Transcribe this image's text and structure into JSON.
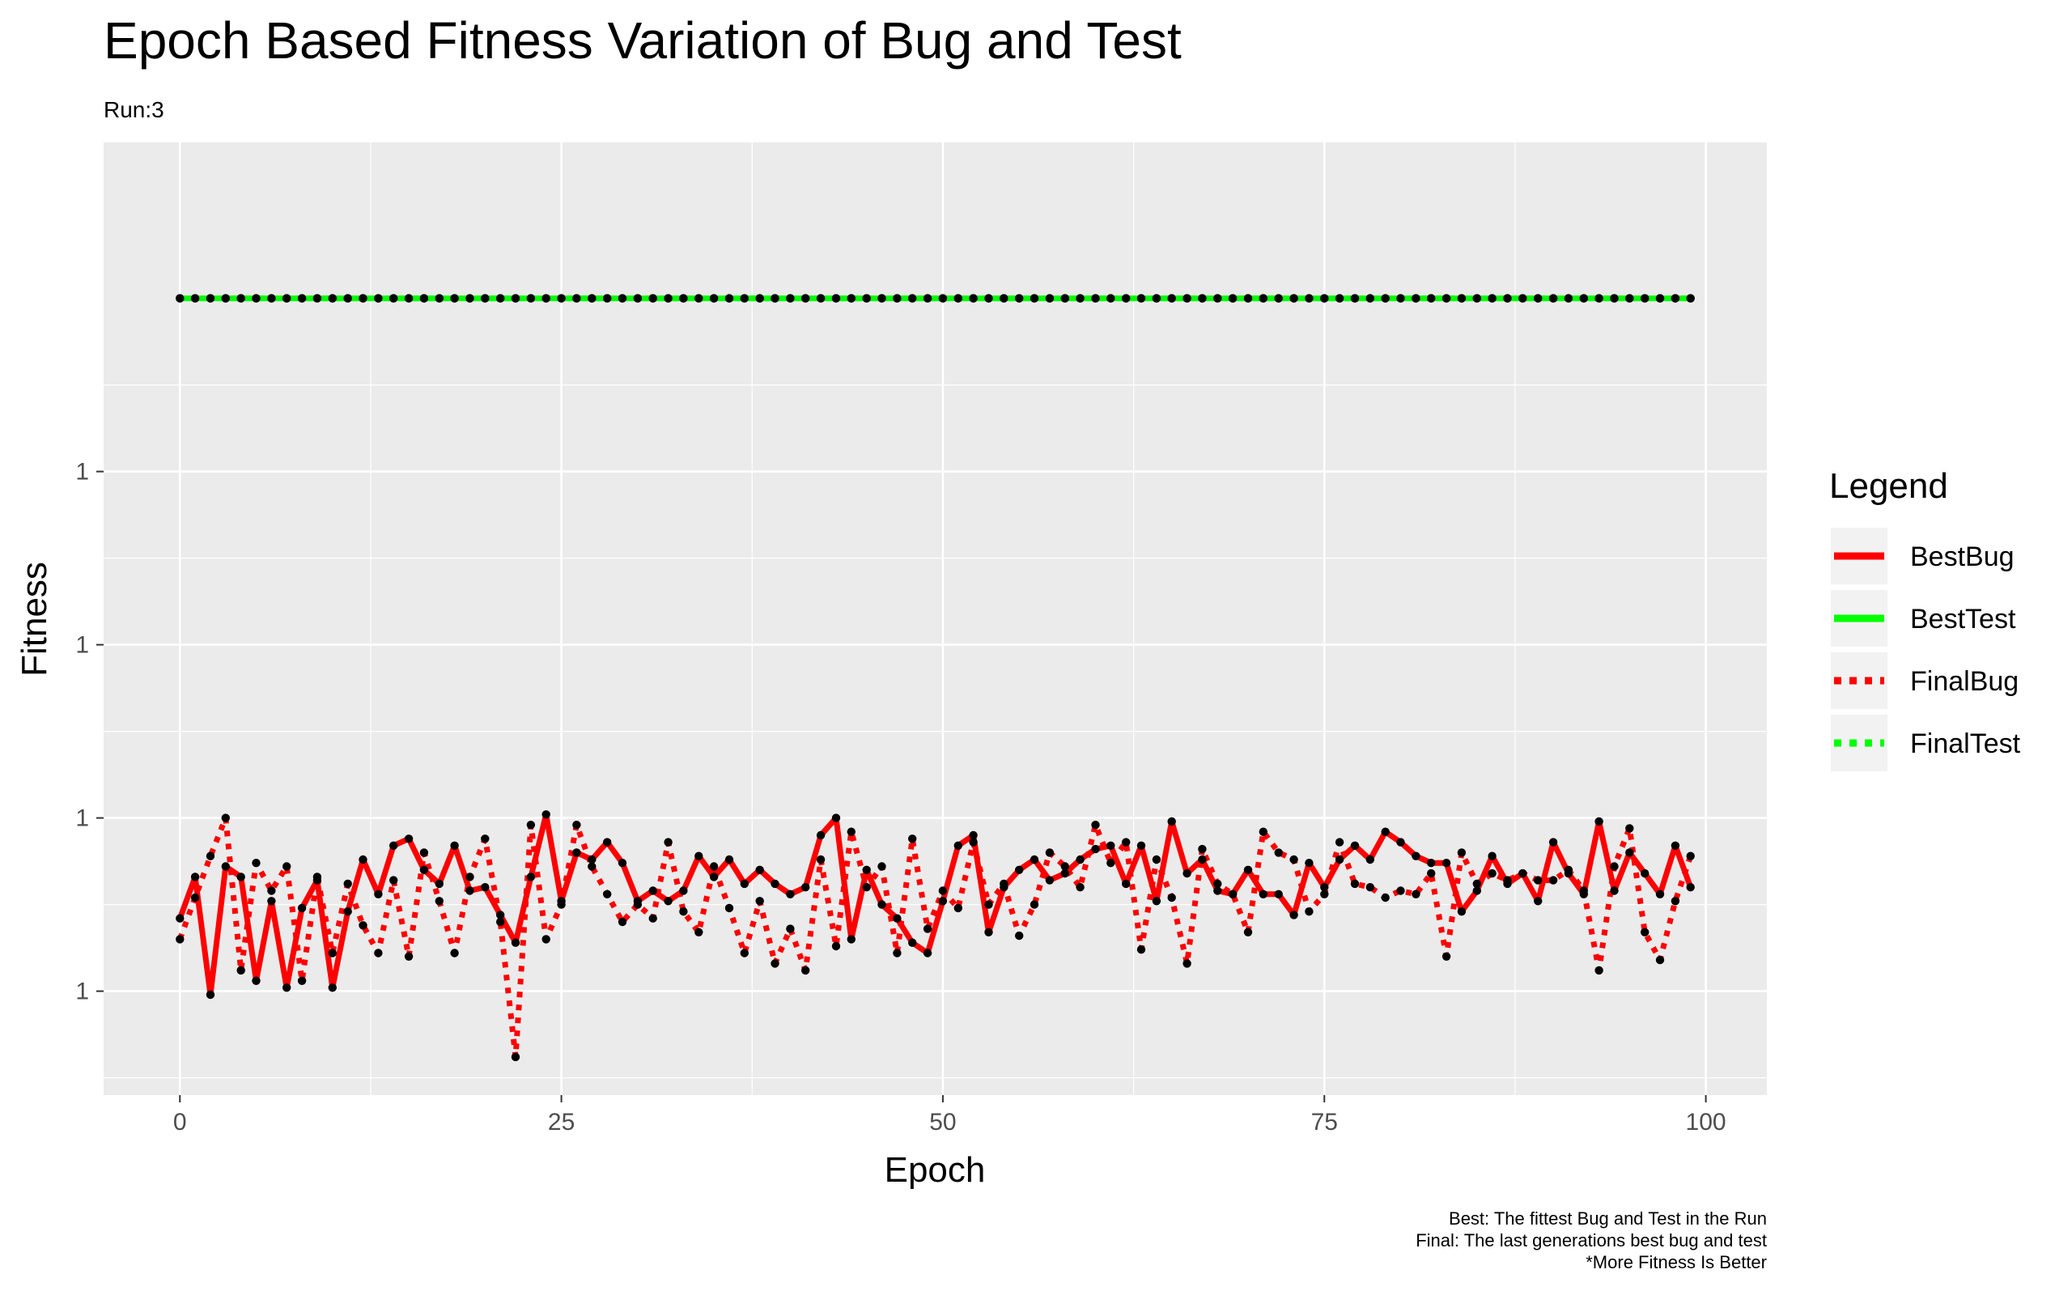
{
  "chart_data": {
    "type": "line",
    "title": "Epoch Based Fitness Variation of Bug and Test",
    "subtitle": "Run:3",
    "xlabel": "Epoch",
    "ylabel": "Fitness",
    "xlim": [
      -5,
      104
    ],
    "ylim": [
      0.977,
      1.0045
    ],
    "x_ticks": [
      0,
      25,
      50,
      75,
      100
    ],
    "y_ticks": [
      0.98,
      0.985,
      0.99,
      0.995
    ],
    "y_tick_labels": [
      "1",
      "1",
      "1",
      "1"
    ],
    "grid": true,
    "legend": {
      "title": "Legend",
      "position": "right",
      "entries": [
        {
          "name": "BestBug",
          "color": "#ff0000",
          "style": "solid"
        },
        {
          "name": "BestTest",
          "color": "#00ff00",
          "style": "solid"
        },
        {
          "name": "FinalBug",
          "color": "#ff0000",
          "style": "dotted"
        },
        {
          "name": "FinalTest",
          "color": "#00ff00",
          "style": "dotted"
        }
      ]
    },
    "caption": [
      "Best: The fittest Bug and Test in the Run",
      "Final: The last generations best bug and test",
      "*More Fitness Is Better"
    ],
    "x": [
      0,
      1,
      2,
      3,
      4,
      5,
      6,
      7,
      8,
      9,
      10,
      11,
      12,
      13,
      14,
      15,
      16,
      17,
      18,
      19,
      20,
      21,
      22,
      23,
      24,
      25,
      26,
      27,
      28,
      29,
      30,
      31,
      32,
      33,
      34,
      35,
      36,
      37,
      38,
      39,
      40,
      41,
      42,
      43,
      44,
      45,
      46,
      47,
      48,
      49,
      50,
      51,
      52,
      53,
      54,
      55,
      56,
      57,
      58,
      59,
      60,
      61,
      62,
      63,
      64,
      65,
      66,
      67,
      68,
      69,
      70,
      71,
      72,
      73,
      74,
      75,
      76,
      77,
      78,
      79,
      80,
      81,
      82,
      83,
      84,
      85,
      86,
      87,
      88,
      89,
      90,
      91,
      92,
      93,
      94,
      95,
      96,
      97,
      98,
      99
    ],
    "series": [
      {
        "name": "BestBug",
        "values": [
          0.9821,
          0.9833,
          0.9799,
          0.9836,
          0.9833,
          0.9803,
          0.9826,
          0.9801,
          0.9824,
          0.9832,
          0.9801,
          0.9823,
          0.9838,
          0.9828,
          0.9842,
          0.9844,
          0.9835,
          0.9831,
          0.9842,
          0.9829,
          0.983,
          0.9822,
          0.9814,
          0.9833,
          0.9851,
          0.9826,
          0.984,
          0.9838,
          0.9843,
          0.9837,
          0.9826,
          0.9829,
          0.9826,
          0.9829,
          0.9839,
          0.9833,
          0.9838,
          0.9831,
          0.9835,
          0.9831,
          0.9828,
          0.983,
          0.9845,
          0.985,
          0.9815,
          0.9835,
          0.9825,
          0.9821,
          0.9814,
          0.9811,
          0.9826,
          0.9842,
          0.9845,
          0.9817,
          0.983,
          0.9835,
          0.9838,
          0.9832,
          0.9834,
          0.9838,
          0.9841,
          0.9842,
          0.9831,
          0.9842,
          0.9826,
          0.9849,
          0.9834,
          0.9838,
          0.9829,
          0.9828,
          0.9835,
          0.9828,
          0.9828,
          0.9822,
          0.9837,
          0.983,
          0.9838,
          0.9842,
          0.9838,
          0.9846,
          0.9843,
          0.9839,
          0.9837,
          0.9837,
          0.9823,
          0.9829,
          0.9839,
          0.9831,
          0.9834,
          0.9826,
          0.9843,
          0.9834,
          0.9828,
          0.9849,
          0.9829,
          0.984,
          0.9834,
          0.9828,
          0.9842,
          0.983
        ]
      },
      {
        "name": "BestTest",
        "values": [
          1.0,
          1.0,
          1.0,
          1.0,
          1.0,
          1.0,
          1.0,
          1.0,
          1.0,
          1.0,
          1.0,
          1.0,
          1.0,
          1.0,
          1.0,
          1.0,
          1.0,
          1.0,
          1.0,
          1.0,
          1.0,
          1.0,
          1.0,
          1.0,
          1.0,
          1.0,
          1.0,
          1.0,
          1.0,
          1.0,
          1.0,
          1.0,
          1.0,
          1.0,
          1.0,
          1.0,
          1.0,
          1.0,
          1.0,
          1.0,
          1.0,
          1.0,
          1.0,
          1.0,
          1.0,
          1.0,
          1.0,
          1.0,
          1.0,
          1.0,
          1.0,
          1.0,
          1.0,
          1.0,
          1.0,
          1.0,
          1.0,
          1.0,
          1.0,
          1.0,
          1.0,
          1.0,
          1.0,
          1.0,
          1.0,
          1.0,
          1.0,
          1.0,
          1.0,
          1.0,
          1.0,
          1.0,
          1.0,
          1.0,
          1.0,
          1.0,
          1.0,
          1.0,
          1.0,
          1.0,
          1.0,
          1.0,
          1.0,
          1.0,
          1.0,
          1.0,
          1.0,
          1.0,
          1.0,
          1.0,
          1.0,
          1.0,
          1.0,
          1.0,
          1.0,
          1.0,
          1.0,
          1.0,
          1.0,
          1.0
        ]
      },
      {
        "name": "FinalBug",
        "values": [
          0.9815,
          0.9827,
          0.9839,
          0.985,
          0.9806,
          0.9837,
          0.9829,
          0.9836,
          0.9803,
          0.9833,
          0.9811,
          0.9831,
          0.9819,
          0.9811,
          0.9832,
          0.981,
          0.984,
          0.9826,
          0.9811,
          0.9833,
          0.9844,
          0.982,
          0.9781,
          0.9848,
          0.9815,
          0.9825,
          0.9848,
          0.9836,
          0.9828,
          0.982,
          0.9825,
          0.9821,
          0.9843,
          0.9823,
          0.9817,
          0.9836,
          0.9824,
          0.9811,
          0.9826,
          0.9808,
          0.9818,
          0.9806,
          0.9838,
          0.9813,
          0.9846,
          0.983,
          0.9836,
          0.9811,
          0.9844,
          0.9818,
          0.9829,
          0.9824,
          0.9843,
          0.9825,
          0.9831,
          0.9816,
          0.9825,
          0.984,
          0.9836,
          0.983,
          0.9848,
          0.9837,
          0.9843,
          0.9812,
          0.9838,
          0.9827,
          0.9808,
          0.9841,
          0.9831,
          0.9828,
          0.9817,
          0.9846,
          0.984,
          0.9838,
          0.9823,
          0.9828,
          0.9843,
          0.9831,
          0.983,
          0.9827,
          0.9829,
          0.9828,
          0.9834,
          0.981,
          0.984,
          0.9831,
          0.9834,
          0.9832,
          0.9834,
          0.9832,
          0.9832,
          0.9835,
          0.9829,
          0.9806,
          0.9836,
          0.9847,
          0.9817,
          0.9809,
          0.9826,
          0.9839
        ]
      },
      {
        "name": "FinalTest",
        "values": [
          1.0,
          1.0,
          1.0,
          1.0,
          1.0,
          1.0,
          1.0,
          1.0,
          1.0,
          1.0,
          1.0,
          1.0,
          1.0,
          1.0,
          1.0,
          1.0,
          1.0,
          1.0,
          1.0,
          1.0,
          1.0,
          1.0,
          1.0,
          1.0,
          1.0,
          1.0,
          1.0,
          1.0,
          1.0,
          1.0,
          1.0,
          1.0,
          1.0,
          1.0,
          1.0,
          1.0,
          1.0,
          1.0,
          1.0,
          1.0,
          1.0,
          1.0,
          1.0,
          1.0,
          1.0,
          1.0,
          1.0,
          1.0,
          1.0,
          1.0,
          1.0,
          1.0,
          1.0,
          1.0,
          1.0,
          1.0,
          1.0,
          1.0,
          1.0,
          1.0,
          1.0,
          1.0,
          1.0,
          1.0,
          1.0,
          1.0,
          1.0,
          1.0,
          1.0,
          1.0,
          1.0,
          1.0,
          1.0,
          1.0,
          1.0,
          1.0,
          1.0,
          1.0,
          1.0,
          1.0,
          1.0,
          1.0,
          1.0,
          1.0,
          1.0,
          1.0,
          1.0,
          1.0,
          1.0,
          1.0,
          1.0,
          1.0,
          1.0,
          1.0,
          1.0,
          1.0,
          1.0,
          1.0,
          1.0,
          1.0
        ]
      }
    ]
  }
}
